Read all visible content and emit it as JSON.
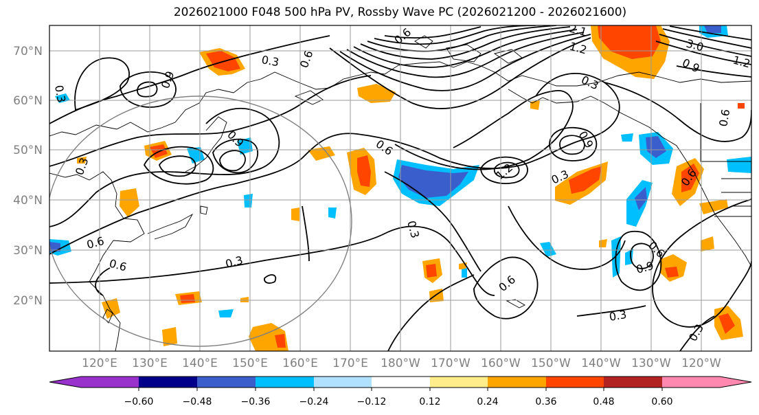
{
  "title": "2026021000 F048 500 hPa PV, Rossby Wave PC (2026021200 - 2026021600)",
  "lat_labels": [
    "70°N",
    "60°N",
    "50°N",
    "40°N",
    "30°N",
    "20°N"
  ],
  "lon_labels": [
    "120°E",
    "130°E",
    "140°E",
    "150°E",
    "160°E",
    "170°E",
    "180°W",
    "170°W",
    "160°W",
    "150°W",
    "140°W",
    "130°W",
    "120°W"
  ],
  "colorbar": {
    "colors": [
      "#9932cc",
      "#00008b",
      "#3a5fcd",
      "#00bfff",
      "#b0e2ff",
      "#ffffff",
      "#ffec8b",
      "#ffa500",
      "#ff4500",
      "#b22222",
      "#ff88b0"
    ],
    "tick_labels": [
      "−0.60",
      "−0.48",
      "−0.36",
      "−0.24",
      "−0.12",
      "0.12",
      "0.24",
      "0.36",
      "0.48",
      "0.60"
    ]
  },
  "contour_labels": [
    "0.3",
    "0.6",
    "0.9",
    "1.2",
    "2.1",
    "3.0",
    "0.6",
    "0.3",
    "0.9",
    "0.6",
    "0.3",
    "0.6",
    "0.3",
    "0.9",
    "0.6",
    "1.2",
    "0.3",
    "0.6",
    "0.9",
    "0.6",
    "0.3",
    "0.3",
    "0.6",
    "0.6",
    "0.3",
    "0.9",
    "1.2",
    "0.3"
  ]
}
